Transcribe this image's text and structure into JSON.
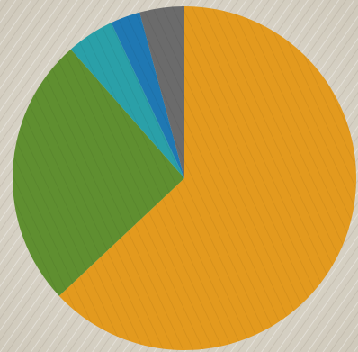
{
  "chart_data": {
    "type": "pie",
    "categories": [
      null,
      null,
      null,
      null,
      null
    ],
    "values": [
      63,
      25.5,
      4.5,
      2.8,
      4.2
    ],
    "colors": [
      "#e39a1e",
      "#5f8f30",
      "#2aa0a8",
      "#1f78b3",
      "#6b6b6b"
    ]
  }
}
